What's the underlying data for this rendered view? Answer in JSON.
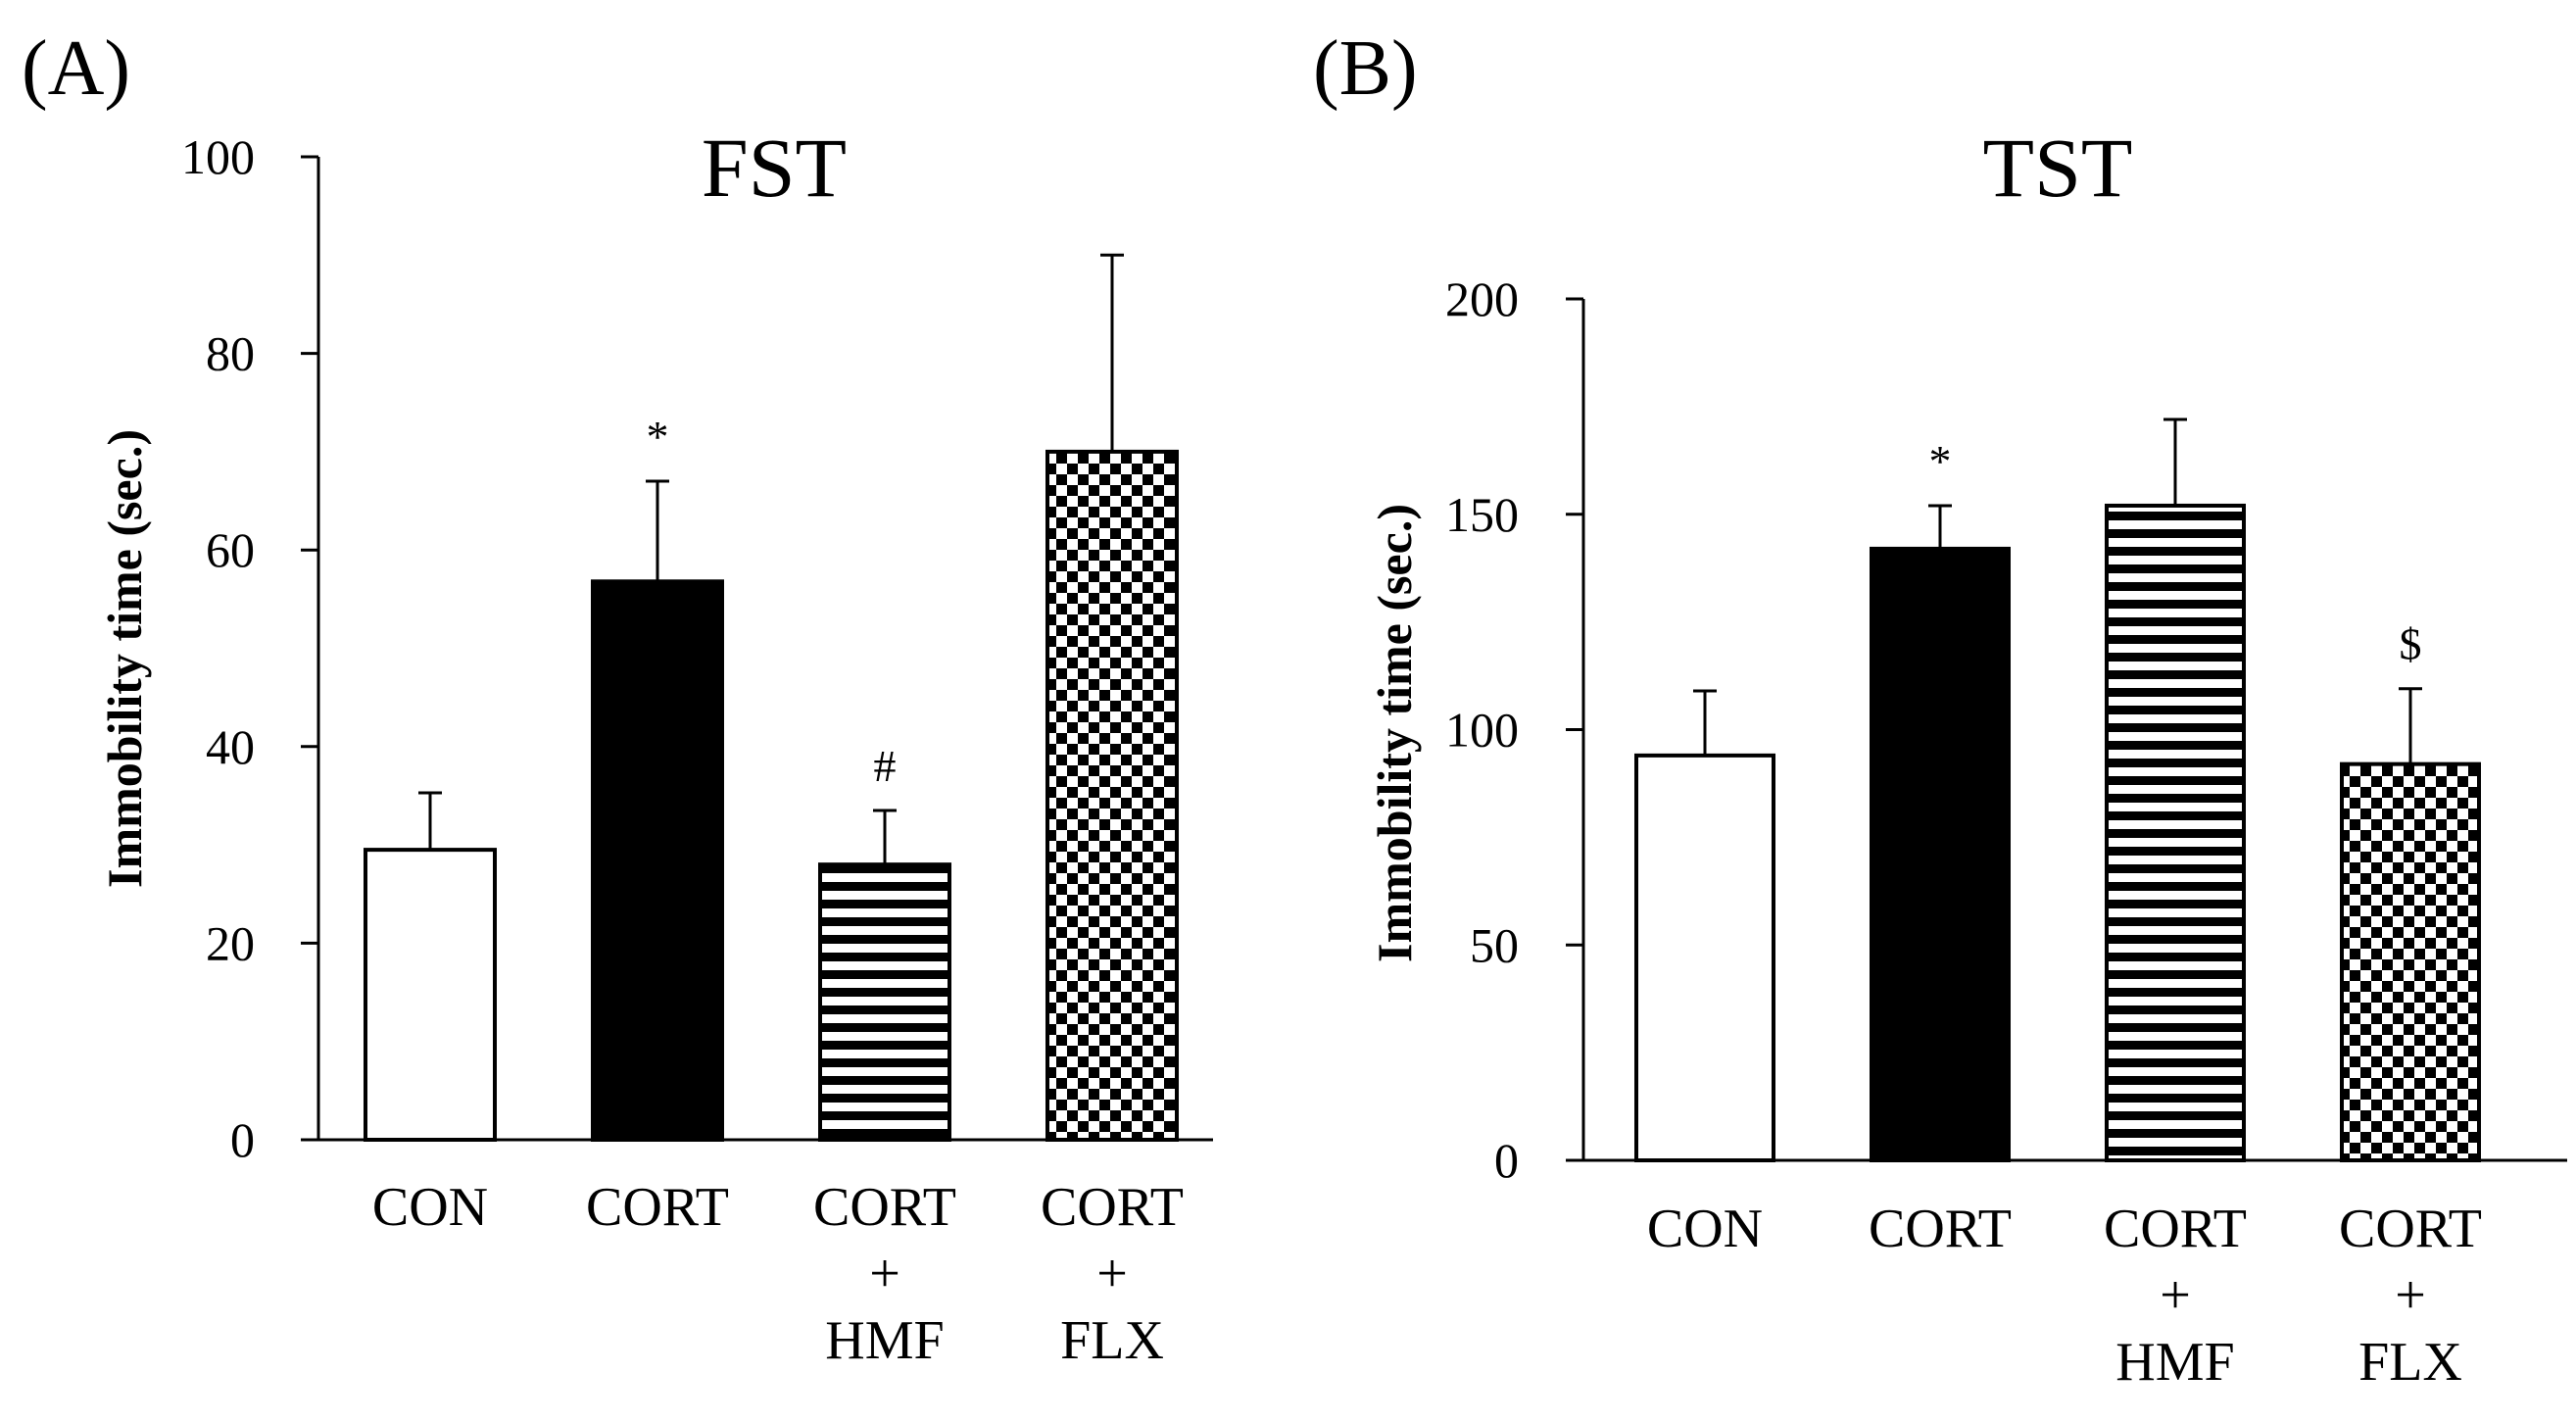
{
  "panels": [
    {
      "label": "(A)",
      "chart_data": {
        "type": "bar",
        "title": "FST",
        "ylabel": "Immobility time (sec.)",
        "xlabel": "",
        "ylim": [
          0,
          100
        ],
        "yticks": [
          0,
          20,
          40,
          60,
          80,
          100
        ],
        "grid": false,
        "categories": [
          {
            "lines": [
              "CON"
            ]
          },
          {
            "lines": [
              "CORT"
            ]
          },
          {
            "lines": [
              "CORT",
              "+",
              "HMF"
            ]
          },
          {
            "lines": [
              "CORT",
              "+",
              "FLX"
            ]
          }
        ],
        "values": [
          29.5,
          56.8,
          28.0,
          70.0
        ],
        "errors": [
          5.8,
          10.2,
          5.5,
          20.0
        ],
        "fills": [
          "white",
          "black",
          "stripes",
          "checker"
        ],
        "annotations": [
          "",
          "*",
          "#",
          ""
        ]
      }
    },
    {
      "label": "(B)",
      "chart_data": {
        "type": "bar",
        "title": "TST",
        "ylabel": "Immobility time (sec.)",
        "xlabel": "",
        "ylim": [
          0,
          200
        ],
        "yticks": [
          0,
          50,
          100,
          150,
          200
        ],
        "grid": false,
        "categories": [
          {
            "lines": [
              "CON"
            ]
          },
          {
            "lines": [
              "CORT"
            ]
          },
          {
            "lines": [
              "CORT",
              "+",
              "HMF"
            ]
          },
          {
            "lines": [
              "CORT",
              "+",
              "FLX"
            ]
          }
        ],
        "values": [
          94,
          142,
          152,
          92
        ],
        "errors": [
          15,
          10,
          20,
          17.5
        ],
        "fills": [
          "white",
          "black",
          "stripes",
          "checker"
        ],
        "annotations": [
          "",
          "*",
          "",
          "$"
        ]
      }
    }
  ],
  "colors": {
    "ink": "#000000",
    "paper": "#ffffff"
  }
}
